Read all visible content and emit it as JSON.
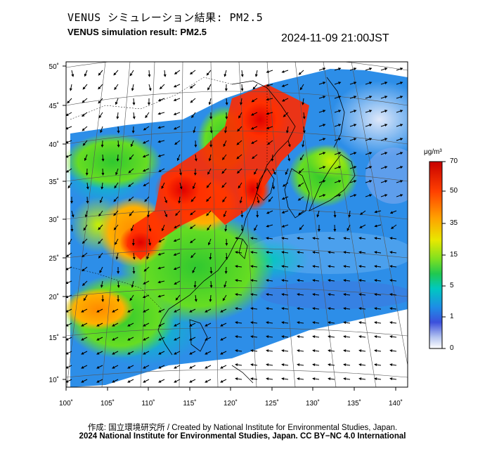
{
  "header": {
    "title_jp": "VENUS シミュレーション結果: PM2.5",
    "title_en": "VENUS simulation result: PM2.5",
    "timestamp": "2024-11-09 21:00JST"
  },
  "map": {
    "lon_ticks": [
      "100˚",
      "105˚",
      "110˚",
      "115˚",
      "120˚",
      "125˚",
      "130˚",
      "135˚",
      "140˚"
    ],
    "lat_ticks": [
      "50˚",
      "45˚",
      "40˚",
      "35˚",
      "30˚",
      "25˚",
      "20˚",
      "15˚",
      "10˚"
    ],
    "lon_range": [
      100,
      142
    ],
    "lat_range": [
      9,
      51
    ]
  },
  "colorbar": {
    "unit": "μg/m³",
    "labels": [
      "70",
      "50",
      "35",
      "15",
      "5",
      "1",
      "0"
    ],
    "colors": [
      "#d40000",
      "#ff3a00",
      "#ff9a00",
      "#ffd400",
      "#c8f000",
      "#3fd24a",
      "#00c8b4",
      "#1e8ce6",
      "#3c50dc",
      "#b4c4f0",
      "#ffffff"
    ]
  },
  "footer": {
    "credit": "作成: 国立環境研究所 / Created by National Institute for Environmental Studies, Japan.",
    "copyright": "2024 National Institute for Environmental Studies, Japan. CC BY−NC 4.0 International"
  }
}
